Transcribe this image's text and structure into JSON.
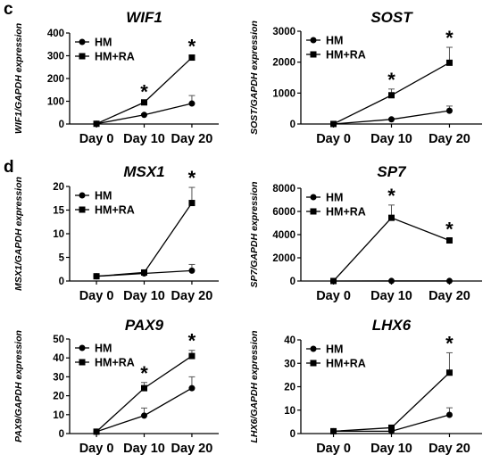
{
  "panel_labels": [
    "c",
    "d"
  ],
  "chart_data": [
    {
      "type": "line",
      "title": "WIF1",
      "ylabel": "WIF1/GAPDH expression",
      "categories": [
        "Day 0",
        "Day 10",
        "Day 20"
      ],
      "ylim": [
        0,
        400
      ],
      "yticks": [
        "0",
        "100",
        "200",
        "300",
        "400"
      ],
      "legend_placement": "top-left",
      "series": [
        {
          "name": "HM",
          "marker": "circle",
          "values": [
            1,
            40,
            90
          ],
          "errors": [
            0,
            5,
            35
          ]
        },
        {
          "name": "HM+RA",
          "marker": "square",
          "values": [
            1,
            95,
            292
          ],
          "errors": [
            0,
            5,
            8
          ]
        }
      ],
      "significance": [
        {
          "category": "Day 10",
          "text": "*"
        },
        {
          "category": "Day 20",
          "text": "*"
        }
      ]
    },
    {
      "type": "line",
      "title": "SOST",
      "ylabel": "SOST/GAPDH expression",
      "categories": [
        "Day 0",
        "Day 10",
        "Day 20"
      ],
      "ylim": [
        0,
        3000
      ],
      "yticks": [
        "0",
        "1000",
        "2000",
        "3000"
      ],
      "legend_placement": "top-left",
      "series": [
        {
          "name": "HM",
          "marker": "circle",
          "values": [
            1,
            150,
            430
          ],
          "errors": [
            0,
            30,
            150
          ]
        },
        {
          "name": "HM+RA",
          "marker": "square",
          "values": [
            1,
            930,
            1980
          ],
          "errors": [
            0,
            200,
            500
          ]
        }
      ],
      "significance": [
        {
          "category": "Day 10",
          "text": "*"
        },
        {
          "category": "Day 20",
          "text": "*"
        }
      ]
    },
    {
      "type": "line",
      "title": "MSX1",
      "ylabel": "MSX1/GAPDH expression",
      "categories": [
        "Day 0",
        "Day 10",
        "Day 20"
      ],
      "ylim": [
        0,
        20
      ],
      "yticks": [
        "0",
        "5",
        "10",
        "15",
        "20"
      ],
      "legend_placement": "top-left",
      "series": [
        {
          "name": "HM",
          "marker": "circle",
          "values": [
            1,
            1.6,
            2.2
          ],
          "errors": [
            0,
            0.3,
            1.3
          ]
        },
        {
          "name": "HM+RA",
          "marker": "square",
          "values": [
            1,
            1.8,
            16.5
          ],
          "errors": [
            0,
            0.3,
            3.3
          ]
        }
      ],
      "significance": [
        {
          "category": "Day 20",
          "text": "*"
        }
      ]
    },
    {
      "type": "line",
      "title": "SP7",
      "ylabel": "SP7/GAPDH expression",
      "categories": [
        "Day 0",
        "Day 10",
        "Day 20"
      ],
      "ylim": [
        0,
        8000
      ],
      "yticks": [
        "0",
        "2000",
        "4000",
        "6000",
        "8000"
      ],
      "legend_placement": "top-left",
      "series": [
        {
          "name": "HM",
          "marker": "circle",
          "values": [
            1,
            5,
            5
          ],
          "errors": [
            0,
            0,
            0
          ]
        },
        {
          "name": "HM+RA",
          "marker": "square",
          "values": [
            1,
            5450,
            3500
          ],
          "errors": [
            0,
            1100,
            150
          ]
        }
      ],
      "significance": [
        {
          "category": "Day 10",
          "text": "*"
        },
        {
          "category": "Day 20",
          "text": "*"
        }
      ]
    },
    {
      "type": "line",
      "title": "PAX9",
      "ylabel": "PAX9/GAPDH expression",
      "categories": [
        "Day 0",
        "Day 10",
        "Day 20"
      ],
      "ylim": [
        0,
        50
      ],
      "yticks": [
        "0",
        "10",
        "20",
        "30",
        "40",
        "50"
      ],
      "legend_placement": "top-left",
      "series": [
        {
          "name": "HM",
          "marker": "circle",
          "values": [
            1,
            9.5,
            24
          ],
          "errors": [
            0,
            4,
            6
          ]
        },
        {
          "name": "HM+RA",
          "marker": "square",
          "values": [
            1,
            24,
            41
          ],
          "errors": [
            0,
            3,
            3
          ]
        }
      ],
      "significance": [
        {
          "category": "Day 10",
          "text": "*"
        },
        {
          "category": "Day 20",
          "text": "*"
        }
      ]
    },
    {
      "type": "line",
      "title": "LHX6",
      "ylabel": "LHX6/GAPDH expression",
      "categories": [
        "Day 0",
        "Day 10",
        "Day 20"
      ],
      "ylim": [
        0,
        40
      ],
      "yticks": [
        "0",
        "10",
        "20",
        "30",
        "40"
      ],
      "legend_placement": "top-left",
      "series": [
        {
          "name": "HM",
          "marker": "circle",
          "values": [
            1,
            1,
            8
          ],
          "errors": [
            0,
            1,
            3
          ]
        },
        {
          "name": "HM+RA",
          "marker": "square",
          "values": [
            1,
            2.5,
            26
          ],
          "errors": [
            0,
            1,
            8.5
          ]
        }
      ],
      "significance": [
        {
          "category": "Day 20",
          "text": "*"
        }
      ]
    }
  ]
}
